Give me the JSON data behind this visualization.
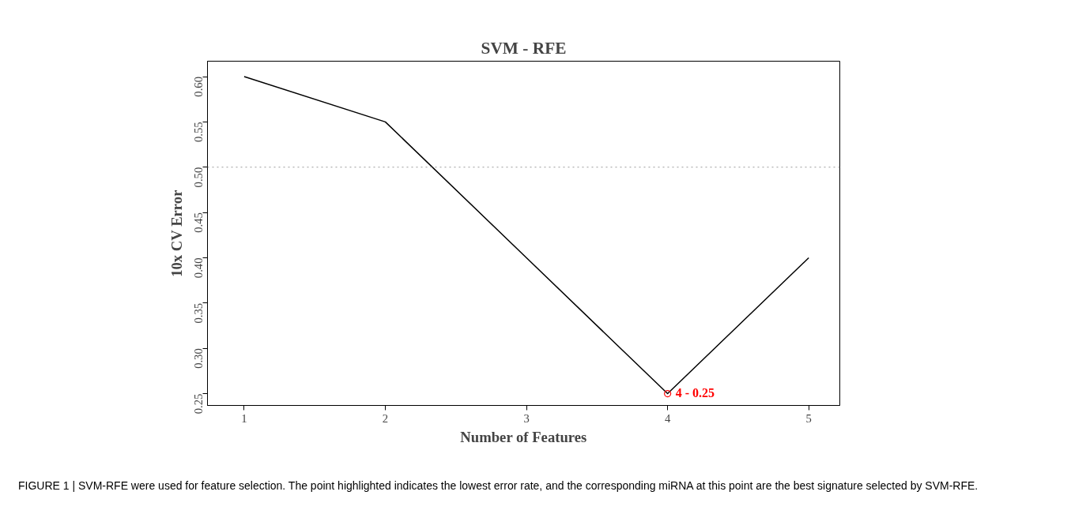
{
  "chart_data": {
    "type": "line",
    "title": "SVM - RFE",
    "xlabel": "Number of Features",
    "ylabel": "10x CV Error",
    "x": [
      1,
      2,
      3,
      4,
      5
    ],
    "series": [
      {
        "color": "#000000",
        "values": [
          0.6,
          0.55,
          0.4,
          0.25,
          0.4
        ],
        "marker": "none"
      },
      {
        "type": "scatter",
        "x": [
          4
        ],
        "color": "#ff0000",
        "values": [
          0.25
        ],
        "marker": "circle"
      }
    ],
    "xlim": [
      0.74,
      5.22
    ],
    "ylim": [
      0.237,
      0.617
    ],
    "xticks": [
      1,
      2,
      3,
      4,
      5
    ],
    "yticks": [
      {
        "value": 0.25,
        "label": "0.25"
      },
      {
        "value": 0.3,
        "label": "0.30"
      },
      {
        "value": 0.35,
        "label": "0.35"
      },
      {
        "value": 0.4,
        "label": "0.40"
      },
      {
        "value": 0.45,
        "label": "0.45"
      },
      {
        "value": 0.5,
        "label": "0.50"
      },
      {
        "value": 0.55,
        "label": "0.55"
      },
      {
        "value": 0.6,
        "label": "0.60"
      }
    ],
    "ref_lines": [
      {
        "axis": "y",
        "value": 0.5,
        "color": "#999999",
        "line_style": "dotted"
      }
    ],
    "grid": false,
    "annotations": [
      {
        "text": "4 - 0.25",
        "x": 4,
        "y": 0.25
      },
      "FIGURE 1 | SVM-RFE were used for feature selection. The point highlighted indicates the lowest error rate, and the corresponding miRNA at this point are the best signature selected by SVM-RFE."
    ]
  }
}
